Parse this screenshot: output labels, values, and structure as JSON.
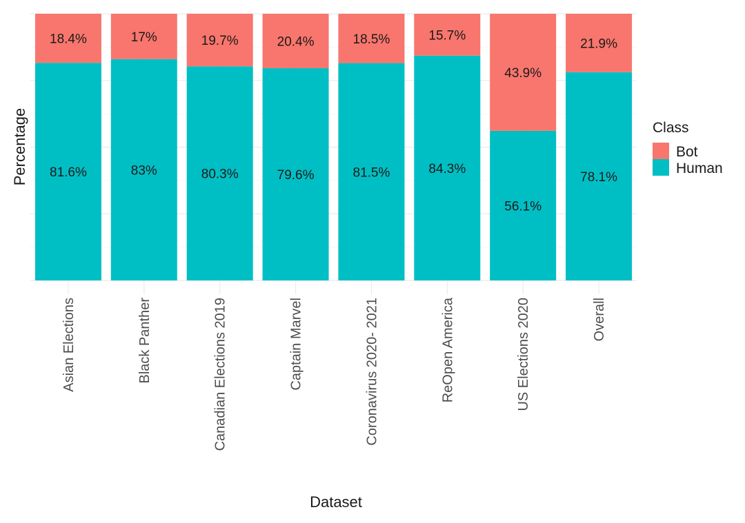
{
  "chart_data": {
    "type": "bar",
    "stacked": true,
    "percent": true,
    "xlabel": "Dataset",
    "ylabel": "Percentage",
    "ylim": [
      0,
      100
    ],
    "y_tick_labels_shown": false,
    "grid": true,
    "legend_position": "right",
    "categories": [
      "Asian Elections",
      "Black Panther",
      "Canadian Elections 2019",
      "Captain Marvel",
      "Coronavirus 2020- 2021",
      "ReOpen America",
      "US Elections 2020",
      "Overall"
    ],
    "legend": {
      "title": "Class",
      "entries": [
        {
          "name": "Bot",
          "color": "#f8766d"
        },
        {
          "name": "Human",
          "color": "#00bfc4"
        }
      ]
    },
    "series": [
      {
        "name": "Human",
        "color": "#00bfc4",
        "values": [
          81.6,
          83,
          80.3,
          79.6,
          81.5,
          84.3,
          56.1,
          78.1
        ],
        "labels": [
          "81.6%",
          "83%",
          "80.3%",
          "79.6%",
          "81.5%",
          "84.3%",
          "56.1%",
          "78.1%"
        ]
      },
      {
        "name": "Bot",
        "color": "#f8766d",
        "values": [
          18.4,
          17,
          19.7,
          20.4,
          18.5,
          15.7,
          43.9,
          21.9
        ],
        "labels": [
          "18.4%",
          "17%",
          "19.7%",
          "20.4%",
          "18.5%",
          "15.7%",
          "43.9%",
          "21.9%"
        ]
      }
    ]
  }
}
